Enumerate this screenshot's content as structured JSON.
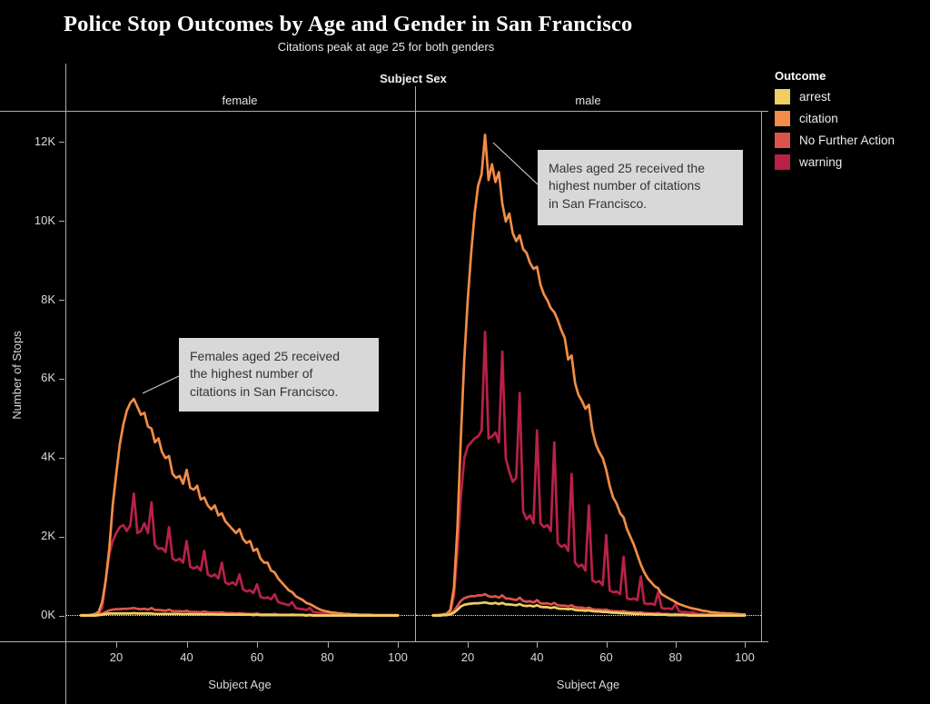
{
  "title": "Police Stop Outcomes by Age and Gender in San Francisco",
  "subtitle": "Citations peak at age 25 for both genders",
  "facet": {
    "header": "Subject Sex",
    "panels": [
      "female",
      "male"
    ]
  },
  "axes": {
    "y_label": "Number of Stops",
    "y_ticks": [
      "0K",
      "2K",
      "4K",
      "6K",
      "8K",
      "10K",
      "12K"
    ],
    "x_label": "Subject Age",
    "x_ticks": [
      "20",
      "40",
      "60",
      "80",
      "100"
    ]
  },
  "legend": {
    "title": "Outcome",
    "items": [
      {
        "label": "arrest",
        "color": "#efce63"
      },
      {
        "label": "citation",
        "color": "#f28c46"
      },
      {
        "label": "No Further Action",
        "color": "#dc5349"
      },
      {
        "label": "warning",
        "color": "#b82147"
      }
    ]
  },
  "annotations": {
    "female": {
      "text": "Females aged 25 received\nthe highest number of\ncitations in San Francisco."
    },
    "male": {
      "text": "Males aged 25 received the\nhighest number of citations\nin San Francisco."
    }
  },
  "chart_data": {
    "type": "line",
    "title": "Police Stop Outcomes by Age and Gender in San Francisco",
    "xlabel": "Subject Age",
    "ylabel": "Number of Stops (thousands)",
    "x_range": [
      10,
      100
    ],
    "x_step": 1,
    "ylim": [
      0,
      12.5
    ],
    "x_ticks": [
      20,
      40,
      60,
      80,
      100
    ],
    "y_ticks_k": [
      0,
      2,
      4,
      6,
      8,
      10,
      12
    ],
    "grid": false,
    "legend_position": "right",
    "facet_by": "Subject Sex",
    "reference_line_k": 0,
    "panels": [
      {
        "name": "female",
        "series": [
          {
            "name": "warning",
            "color": "#b82147",
            "values": [
              0.01,
              0.01,
              0.01,
              0.02,
              0.03,
              0.06,
              0.2,
              0.9,
              1.55,
              1.9,
              2.1,
              2.25,
              2.3,
              2.15,
              2.3,
              3.1,
              2.1,
              2.15,
              2.35,
              2.1,
              2.88,
              1.8,
              1.7,
              1.72,
              1.62,
              2.25,
              1.45,
              1.4,
              1.45,
              1.35,
              1.9,
              1.25,
              1.2,
              1.25,
              1.15,
              1.65,
              1.05,
              1.0,
              1.05,
              0.95,
              1.35,
              0.85,
              0.8,
              0.85,
              0.78,
              1.05,
              0.68,
              0.62,
              0.65,
              0.58,
              0.8,
              0.48,
              0.45,
              0.47,
              0.42,
              0.55,
              0.35,
              0.32,
              0.3,
              0.27,
              0.35,
              0.2,
              0.18,
              0.17,
              0.15,
              0.2,
              0.1,
              0.09,
              0.08,
              0.07,
              0.08,
              0.05,
              0.04,
              0.04,
              0.03,
              0.04,
              0.02,
              0.02,
              0.02,
              0.02,
              0.02,
              0.01,
              0.01,
              0.01,
              0.01,
              0.01,
              0.01,
              0.01,
              0.01,
              0.01,
              0.01
            ]
          },
          {
            "name": "citation",
            "color": "#f28c46",
            "values": [
              0.02,
              0.02,
              0.02,
              0.03,
              0.05,
              0.1,
              0.35,
              0.9,
              1.7,
              2.8,
              3.6,
              4.35,
              4.85,
              5.2,
              5.4,
              5.5,
              5.3,
              5.1,
              5.15,
              4.8,
              4.75,
              4.4,
              4.5,
              4.15,
              4.0,
              4.05,
              3.6,
              3.5,
              3.55,
              3.35,
              3.7,
              3.25,
              3.2,
              3.3,
              2.95,
              3.0,
              2.8,
              2.7,
              2.8,
              2.55,
              2.6,
              2.4,
              2.3,
              2.2,
              2.1,
              2.2,
              1.95,
              1.85,
              1.9,
              1.65,
              1.7,
              1.45,
              1.35,
              1.35,
              1.15,
              1.1,
              0.95,
              0.85,
              0.75,
              0.65,
              0.6,
              0.5,
              0.45,
              0.4,
              0.33,
              0.3,
              0.25,
              0.2,
              0.16,
              0.13,
              0.11,
              0.09,
              0.08,
              0.07,
              0.06,
              0.05,
              0.05,
              0.04,
              0.04,
              0.03,
              0.03,
              0.03,
              0.03,
              0.02,
              0.02,
              0.02,
              0.02,
              0.02,
              0.02,
              0.02,
              0.02
            ]
          },
          {
            "name": "No Further Action",
            "color": "#dc5349",
            "values": [
              0.01,
              0.01,
              0.01,
              0.01,
              0.02,
              0.03,
              0.06,
              0.1,
              0.14,
              0.16,
              0.17,
              0.17,
              0.18,
              0.18,
              0.19,
              0.2,
              0.18,
              0.17,
              0.18,
              0.16,
              0.2,
              0.15,
              0.15,
              0.14,
              0.13,
              0.16,
              0.12,
              0.12,
              0.12,
              0.11,
              0.13,
              0.1,
              0.1,
              0.1,
              0.09,
              0.11,
              0.09,
              0.08,
              0.08,
              0.08,
              0.09,
              0.07,
              0.07,
              0.07,
              0.06,
              0.07,
              0.06,
              0.05,
              0.05,
              0.05,
              0.06,
              0.04,
              0.04,
              0.04,
              0.04,
              0.05,
              0.03,
              0.03,
              0.03,
              0.03,
              0.04,
              0.03,
              0.03,
              0.03,
              0.02,
              0.03,
              0.02,
              0.02,
              0.02,
              0.02,
              0.02,
              0.02,
              0.02,
              0.02,
              0.01,
              0.02,
              0.01,
              0.01,
              0.01,
              0.01,
              0.01,
              0.01,
              0.01,
              0.01,
              0.01,
              0.01,
              0.01,
              0.01,
              0.01,
              0.01,
              0.01
            ]
          },
          {
            "name": "arrest",
            "color": "#efce63",
            "values": [
              0.01,
              0.01,
              0.01,
              0.01,
              0.01,
              0.02,
              0.03,
              0.05,
              0.06,
              0.06,
              0.06,
              0.06,
              0.06,
              0.06,
              0.06,
              0.07,
              0.06,
              0.06,
              0.06,
              0.06,
              0.06,
              0.05,
              0.05,
              0.05,
              0.05,
              0.05,
              0.05,
              0.05,
              0.05,
              0.04,
              0.05,
              0.04,
              0.04,
              0.04,
              0.04,
              0.04,
              0.04,
              0.04,
              0.04,
              0.03,
              0.04,
              0.03,
              0.03,
              0.03,
              0.03,
              0.03,
              0.03,
              0.03,
              0.03,
              0.02,
              0.03,
              0.02,
              0.02,
              0.02,
              0.02,
              0.02,
              0.02,
              0.02,
              0.02,
              0.02,
              0.02,
              0.02,
              0.02,
              0.02,
              0.01,
              0.02,
              0.01,
              0.01,
              0.01,
              0.01,
              0.01,
              0.01,
              0.01,
              0.01,
              0.01,
              0.01,
              0.01,
              0.01,
              0.01,
              0.01,
              0.01,
              0.01,
              0.01,
              0.01,
              0.01,
              0.01,
              0.01,
              0.01,
              0.01,
              0.01,
              0.01
            ]
          }
        ]
      },
      {
        "name": "male",
        "series": [
          {
            "name": "warning",
            "color": "#b82147",
            "values": [
              0.01,
              0.01,
              0.02,
              0.03,
              0.05,
              0.1,
              0.5,
              1.6,
              3.0,
              4.0,
              4.3,
              4.4,
              4.5,
              4.55,
              4.7,
              7.2,
              4.5,
              4.55,
              4.65,
              4.4,
              6.7,
              4.0,
              3.65,
              3.4,
              3.5,
              5.65,
              2.65,
              2.45,
              2.55,
              2.35,
              4.7,
              2.35,
              2.25,
              2.3,
              2.15,
              4.4,
              1.85,
              1.75,
              1.8,
              1.65,
              3.6,
              1.35,
              1.25,
              1.3,
              1.15,
              2.8,
              0.9,
              0.85,
              0.88,
              0.78,
              2.05,
              0.64,
              0.6,
              0.62,
              0.55,
              1.5,
              0.45,
              0.42,
              0.44,
              0.4,
              1.0,
              0.32,
              0.3,
              0.31,
              0.28,
              0.6,
              0.2,
              0.18,
              0.19,
              0.17,
              0.3,
              0.12,
              0.1,
              0.1,
              0.08,
              0.1,
              0.06,
              0.05,
              0.05,
              0.04,
              0.04,
              0.03,
              0.03,
              0.02,
              0.02,
              0.02,
              0.02,
              0.01,
              0.01,
              0.01,
              0.01
            ]
          },
          {
            "name": "citation",
            "color": "#f28c46",
            "values": [
              0.02,
              0.02,
              0.03,
              0.04,
              0.06,
              0.15,
              0.7,
              2.2,
              4.5,
              6.5,
              8.0,
              9.2,
              10.2,
              10.9,
              11.2,
              12.2,
              11.05,
              11.45,
              11.0,
              11.25,
              10.45,
              10.0,
              10.2,
              9.7,
              9.5,
              9.65,
              9.3,
              9.2,
              8.95,
              8.8,
              8.85,
              8.4,
              8.15,
              8.0,
              7.8,
              7.7,
              7.5,
              7.25,
              7.05,
              6.5,
              6.6,
              5.9,
              5.6,
              5.45,
              5.25,
              5.35,
              4.7,
              4.35,
              4.15,
              4.0,
              3.7,
              3.3,
              3.0,
              2.85,
              2.6,
              2.5,
              2.2,
              2.0,
              1.8,
              1.55,
              1.3,
              1.1,
              0.95,
              0.85,
              0.75,
              0.7,
              0.55,
              0.5,
              0.45,
              0.4,
              0.35,
              0.3,
              0.27,
              0.24,
              0.21,
              0.19,
              0.17,
              0.15,
              0.13,
              0.12,
              0.1,
              0.09,
              0.08,
              0.07,
              0.07,
              0.06,
              0.06,
              0.05,
              0.05,
              0.04,
              0.04
            ]
          },
          {
            "name": "No Further Action",
            "color": "#dc5349",
            "values": [
              0.01,
              0.01,
              0.02,
              0.02,
              0.03,
              0.05,
              0.12,
              0.25,
              0.38,
              0.45,
              0.48,
              0.5,
              0.5,
              0.52,
              0.52,
              0.55,
              0.5,
              0.48,
              0.5,
              0.46,
              0.52,
              0.44,
              0.44,
              0.42,
              0.4,
              0.46,
              0.38,
              0.36,
              0.37,
              0.34,
              0.4,
              0.32,
              0.31,
              0.32,
              0.29,
              0.33,
              0.27,
              0.26,
              0.26,
              0.24,
              0.27,
              0.22,
              0.21,
              0.21,
              0.19,
              0.21,
              0.17,
              0.16,
              0.16,
              0.15,
              0.16,
              0.13,
              0.12,
              0.12,
              0.11,
              0.12,
              0.1,
              0.09,
              0.09,
              0.08,
              0.09,
              0.07,
              0.07,
              0.06,
              0.06,
              0.07,
              0.05,
              0.05,
              0.05,
              0.04,
              0.05,
              0.04,
              0.04,
              0.03,
              0.03,
              0.04,
              0.03,
              0.03,
              0.03,
              0.02,
              0.03,
              0.02,
              0.02,
              0.02,
              0.02,
              0.02,
              0.02,
              0.02,
              0.02,
              0.02,
              0.02
            ]
          },
          {
            "name": "arrest",
            "color": "#efce63",
            "values": [
              0.01,
              0.01,
              0.01,
              0.02,
              0.02,
              0.04,
              0.08,
              0.15,
              0.24,
              0.28,
              0.3,
              0.31,
              0.32,
              0.32,
              0.33,
              0.34,
              0.32,
              0.31,
              0.33,
              0.3,
              0.33,
              0.29,
              0.29,
              0.28,
              0.27,
              0.3,
              0.26,
              0.25,
              0.26,
              0.24,
              0.27,
              0.23,
              0.22,
              0.22,
              0.2,
              0.22,
              0.19,
              0.18,
              0.18,
              0.17,
              0.18,
              0.15,
              0.14,
              0.14,
              0.13,
              0.14,
              0.12,
              0.11,
              0.11,
              0.1,
              0.1,
              0.09,
              0.08,
              0.08,
              0.07,
              0.07,
              0.06,
              0.06,
              0.05,
              0.05,
              0.05,
              0.04,
              0.04,
              0.04,
              0.03,
              0.03,
              0.03,
              0.03,
              0.02,
              0.02,
              0.02,
              0.02,
              0.02,
              0.02,
              0.01,
              0.01,
              0.01,
              0.01,
              0.01,
              0.01,
              0.01,
              0.01,
              0.01,
              0.01,
              0.01,
              0.01,
              0.01,
              0.01,
              0.01,
              0.01,
              0.01
            ]
          }
        ]
      }
    ]
  }
}
